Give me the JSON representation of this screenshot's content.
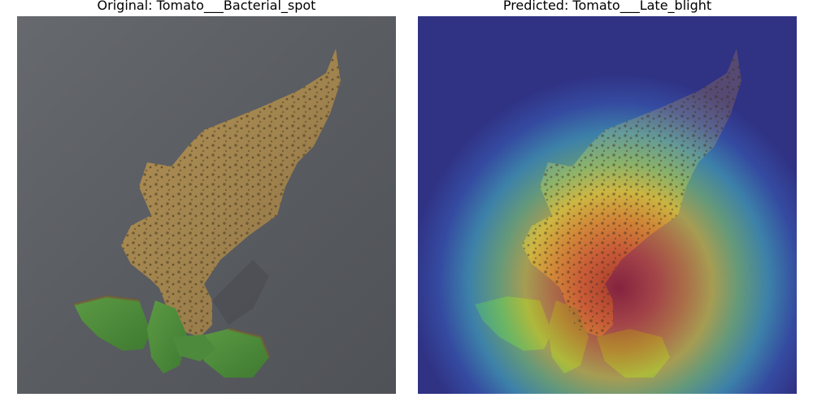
{
  "panels": [
    {
      "title": "Original: Tomato___Bacterial_spot"
    },
    {
      "title": "Predicted: Tomato___Late_blight"
    }
  ]
}
